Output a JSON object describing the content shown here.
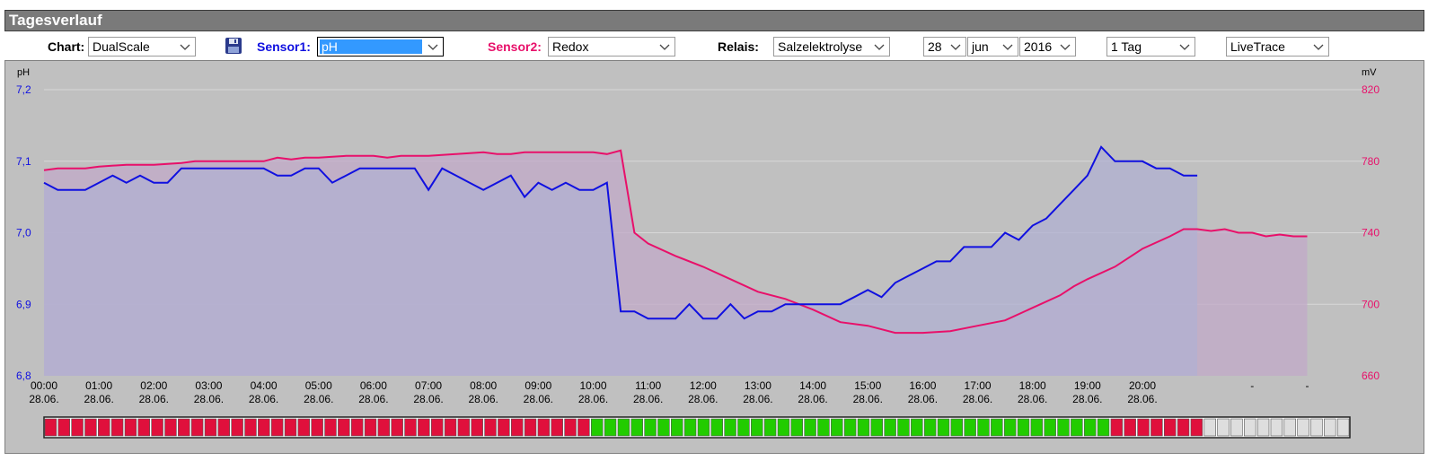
{
  "panel": {
    "title": "Tagesverlauf"
  },
  "controls": {
    "chart_label": "Chart:",
    "chart_value": "DualScale",
    "sensor1_label": "Sensor1:",
    "sensor1_value": "pH",
    "sensor2_label": "Sensor2:",
    "sensor2_value": "Redox",
    "relais_label": "Relais:",
    "relais_value": "Salzelektrolyse",
    "day_value": "28",
    "month_value": "jun",
    "year_value": "2016",
    "range_value": "1 Tag",
    "mode_value": "LiveTrace",
    "save_icon": "floppy-disk-icon"
  },
  "colors": {
    "sensor1": "#1010e0",
    "sensor2": "#e8106a",
    "relay_on": "#22cc00",
    "relay_off": "#e0103c",
    "relay_empty": "#dedede",
    "plot_bg": "#c0c0c0",
    "fill_overlap": "#b4a4c0",
    "fill_ph": "#b0b0d2",
    "fill_redox": "#c2aac8"
  },
  "chart_data": {
    "type": "line",
    "left_axis": {
      "unit": "pH",
      "ticks": [
        "7,2",
        "7,1",
        "7,0",
        "6,9",
        "6,8"
      ],
      "range": [
        6.8,
        7.2
      ]
    },
    "right_axis": {
      "unit": "mV",
      "ticks": [
        "820",
        "780",
        "740",
        "700",
        "660"
      ],
      "range": [
        660,
        820
      ]
    },
    "x_ticks": [
      {
        "t": 0,
        "time": "00:00",
        "date": "28.06."
      },
      {
        "t": 1,
        "time": "01:00",
        "date": "28.06."
      },
      {
        "t": 2,
        "time": "02:00",
        "date": "28.06."
      },
      {
        "t": 3,
        "time": "03:00",
        "date": "28.06."
      },
      {
        "t": 4,
        "time": "04:00",
        "date": "28.06."
      },
      {
        "t": 5,
        "time": "05:00",
        "date": "28.06."
      },
      {
        "t": 6,
        "time": "06:00",
        "date": "28.06."
      },
      {
        "t": 7,
        "time": "07:00",
        "date": "28.06."
      },
      {
        "t": 8,
        "time": "08:00",
        "date": "28.06."
      },
      {
        "t": 9,
        "time": "09:00",
        "date": "28.06."
      },
      {
        "t": 10,
        "time": "10:00",
        "date": "28.06."
      },
      {
        "t": 11,
        "time": "11:00",
        "date": "28.06."
      },
      {
        "t": 12,
        "time": "12:00",
        "date": "28.06."
      },
      {
        "t": 13,
        "time": "13:00",
        "date": "28.06."
      },
      {
        "t": 14,
        "time": "14:00",
        "date": "28.06."
      },
      {
        "t": 15,
        "time": "15:00",
        "date": "28.06."
      },
      {
        "t": 16,
        "time": "16:00",
        "date": "28.06."
      },
      {
        "t": 17,
        "time": "17:00",
        "date": "28.06."
      },
      {
        "t": 18,
        "time": "18:00",
        "date": "28.06."
      },
      {
        "t": 19,
        "time": "19:00",
        "date": "28.06."
      },
      {
        "t": 20,
        "time": "20:00",
        "date": "28.06."
      },
      {
        "t": 22,
        "time": "-",
        "date": ""
      },
      {
        "t": 23,
        "time": "-",
        "date": ""
      }
    ],
    "series": [
      {
        "name": "pH",
        "axis": "left",
        "points": [
          [
            0,
            7.07
          ],
          [
            0.25,
            7.06
          ],
          [
            0.75,
            7.06
          ],
          [
            1,
            7.07
          ],
          [
            1.25,
            7.08
          ],
          [
            1.5,
            7.07
          ],
          [
            1.75,
            7.08
          ],
          [
            2,
            7.07
          ],
          [
            2.25,
            7.07
          ],
          [
            2.5,
            7.09
          ],
          [
            3.25,
            7.09
          ],
          [
            4,
            7.09
          ],
          [
            4.25,
            7.08
          ],
          [
            4.5,
            7.08
          ],
          [
            4.75,
            7.09
          ],
          [
            5,
            7.09
          ],
          [
            5.25,
            7.07
          ],
          [
            5.5,
            7.08
          ],
          [
            5.75,
            7.09
          ],
          [
            6.25,
            7.09
          ],
          [
            6.75,
            7.09
          ],
          [
            7.0,
            7.06
          ],
          [
            7.25,
            7.09
          ],
          [
            7.75,
            7.07
          ],
          [
            8.0,
            7.06
          ],
          [
            8.5,
            7.08
          ],
          [
            8.75,
            7.05
          ],
          [
            9.0,
            7.07
          ],
          [
            9.25,
            7.06
          ],
          [
            9.5,
            7.07
          ],
          [
            9.75,
            7.06
          ],
          [
            10.0,
            7.06
          ],
          [
            10.25,
            7.07
          ],
          [
            10.5,
            6.89
          ],
          [
            10.75,
            6.89
          ],
          [
            11.0,
            6.88
          ],
          [
            11.5,
            6.88
          ],
          [
            11.75,
            6.9
          ],
          [
            12.0,
            6.88
          ],
          [
            12.25,
            6.88
          ],
          [
            12.5,
            6.9
          ],
          [
            12.75,
            6.88
          ],
          [
            13.0,
            6.89
          ],
          [
            13.25,
            6.89
          ],
          [
            13.5,
            6.9
          ],
          [
            14.0,
            6.9
          ],
          [
            14.5,
            6.9
          ],
          [
            14.75,
            6.91
          ],
          [
            15.0,
            6.92
          ],
          [
            15.25,
            6.91
          ],
          [
            15.5,
            6.93
          ],
          [
            15.75,
            6.94
          ],
          [
            16.0,
            6.95
          ],
          [
            16.25,
            6.96
          ],
          [
            16.5,
            6.96
          ],
          [
            16.75,
            6.98
          ],
          [
            17.0,
            6.98
          ],
          [
            17.25,
            6.98
          ],
          [
            17.5,
            7.0
          ],
          [
            17.75,
            6.99
          ],
          [
            18.0,
            7.01
          ],
          [
            18.25,
            7.02
          ],
          [
            18.5,
            7.04
          ],
          [
            18.75,
            7.06
          ],
          [
            19.0,
            7.08
          ],
          [
            19.25,
            7.12
          ],
          [
            19.5,
            7.1
          ],
          [
            19.75,
            7.1
          ],
          [
            20.0,
            7.1
          ],
          [
            20.25,
            7.09
          ],
          [
            20.5,
            7.09
          ],
          [
            20.75,
            7.08
          ],
          [
            21.0,
            7.08
          ]
        ]
      },
      {
        "name": "Redox",
        "axis": "right",
        "points": [
          [
            0,
            775
          ],
          [
            0.25,
            776
          ],
          [
            0.75,
            776
          ],
          [
            1,
            777
          ],
          [
            1.5,
            778
          ],
          [
            2,
            778
          ],
          [
            2.5,
            779
          ],
          [
            2.75,
            780
          ],
          [
            3,
            780
          ],
          [
            3.5,
            780
          ],
          [
            4,
            780
          ],
          [
            4.25,
            782
          ],
          [
            4.5,
            781
          ],
          [
            4.75,
            782
          ],
          [
            5,
            782
          ],
          [
            5.5,
            783
          ],
          [
            6,
            783
          ],
          [
            6.25,
            782
          ],
          [
            6.5,
            783
          ],
          [
            7,
            783
          ],
          [
            7.5,
            784
          ],
          [
            8,
            785
          ],
          [
            8.25,
            784
          ],
          [
            8.5,
            784
          ],
          [
            8.75,
            785
          ],
          [
            9,
            785
          ],
          [
            9.5,
            785
          ],
          [
            10,
            785
          ],
          [
            10.25,
            784
          ],
          [
            10.5,
            786
          ],
          [
            10.75,
            740
          ],
          [
            11.0,
            734
          ],
          [
            11.5,
            727
          ],
          [
            12.0,
            721
          ],
          [
            12.5,
            714
          ],
          [
            13.0,
            707
          ],
          [
            13.5,
            703
          ],
          [
            14.0,
            697
          ],
          [
            14.5,
            690
          ],
          [
            15.0,
            688
          ],
          [
            15.5,
            684
          ],
          [
            16.0,
            684
          ],
          [
            16.5,
            685
          ],
          [
            17.0,
            688
          ],
          [
            17.5,
            691
          ],
          [
            18.0,
            698
          ],
          [
            18.5,
            705
          ],
          [
            18.75,
            710
          ],
          [
            19.0,
            714
          ],
          [
            19.5,
            721
          ],
          [
            20.0,
            731
          ],
          [
            20.5,
            738
          ],
          [
            20.75,
            742
          ],
          [
            21.0,
            742
          ],
          [
            21.25,
            741
          ],
          [
            21.5,
            742
          ],
          [
            21.75,
            740
          ],
          [
            22.0,
            740
          ],
          [
            22.25,
            738
          ],
          [
            22.5,
            739
          ],
          [
            22.75,
            738
          ],
          [
            23.0,
            738
          ]
        ]
      }
    ],
    "relay": {
      "name": "Salzelektrolyse",
      "states": [
        "off",
        "off",
        "off",
        "off",
        "off",
        "off",
        "off",
        "off",
        "off",
        "off",
        "off",
        "off",
        "off",
        "off",
        "off",
        "off",
        "off",
        "off",
        "off",
        "off",
        "off",
        "off",
        "off",
        "off",
        "off",
        "off",
        "off",
        "off",
        "off",
        "off",
        "off",
        "off",
        "off",
        "off",
        "off",
        "off",
        "off",
        "off",
        "off",
        "off",
        "off",
        "on",
        "on",
        "on",
        "on",
        "on",
        "on",
        "on",
        "on",
        "on",
        "on",
        "on",
        "on",
        "on",
        "on",
        "on",
        "on",
        "on",
        "on",
        "on",
        "on",
        "on",
        "on",
        "on",
        "on",
        "on",
        "on",
        "on",
        "on",
        "on",
        "on",
        "on",
        "on",
        "on",
        "on",
        "on",
        "on",
        "on",
        "on",
        "on",
        "off",
        "off",
        "off",
        "off",
        "off",
        "off",
        "off",
        "empty",
        "empty",
        "empty",
        "empty",
        "empty",
        "empty",
        "empty",
        "empty",
        "empty",
        "empty",
        "empty"
      ]
    }
  }
}
